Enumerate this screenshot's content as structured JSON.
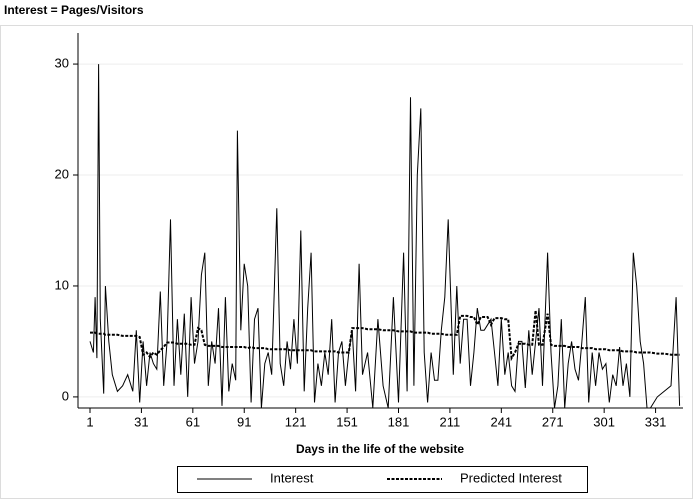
{
  "chart_data": {
    "type": "line",
    "title": "Interest = Pages/Visitors",
    "x_label": "Days in the life of the website",
    "xlim": [
      -6,
      347
    ],
    "ylim": [
      -1,
      32.8
    ],
    "xticks": [
      1,
      31,
      61,
      91,
      121,
      151,
      181,
      211,
      241,
      271,
      301,
      331
    ],
    "yticks": [
      0,
      10,
      20,
      30
    ],
    "grid": true,
    "legend": "bottom",
    "x": [
      1,
      3,
      4,
      5,
      6,
      7,
      9,
      10,
      12,
      14,
      17,
      20,
      23,
      26,
      28,
      30,
      32,
      34,
      36,
      38,
      40,
      42,
      44,
      46,
      48,
      50,
      52,
      54,
      56,
      58,
      60,
      62,
      64,
      66,
      68,
      70,
      72,
      74,
      76,
      78,
      80,
      82,
      84,
      86,
      87,
      89,
      91,
      93,
      95,
      97,
      99,
      101,
      103,
      105,
      107,
      110,
      112,
      114,
      116,
      118,
      120,
      122,
      124,
      126,
      128,
      130,
      132,
      134,
      136,
      138,
      140,
      142,
      144,
      146,
      148,
      150,
      152,
      154,
      156,
      158,
      160,
      163,
      166,
      169,
      172,
      175,
      178,
      181,
      184,
      186,
      188,
      190,
      192,
      194,
      196,
      198,
      200,
      202,
      204,
      206,
      208,
      210,
      213,
      215,
      217,
      219,
      221,
      223,
      225,
      227,
      229,
      231,
      233,
      235,
      237,
      239,
      241,
      243,
      245,
      247,
      249,
      251,
      253,
      255,
      257,
      259,
      261,
      263,
      265,
      268,
      270,
      272,
      274,
      276,
      278,
      280,
      282,
      284,
      286,
      288,
      290,
      292,
      294,
      296,
      298,
      300,
      302,
      304,
      306,
      308,
      310,
      312,
      314,
      316,
      318,
      320,
      322,
      324,
      326,
      328,
      332,
      336,
      340,
      343,
      345
    ],
    "series": [
      {
        "name": "Interest",
        "color": "#000000",
        "style": "solid",
        "values": [
          5,
          4,
          9,
          3.5,
          30,
          7,
          0.3,
          10,
          5,
          2,
          0.5,
          1,
          2,
          0.5,
          6,
          -0.5,
          5,
          1,
          4,
          3,
          2.5,
          9.5,
          1,
          5,
          16,
          1,
          7,
          2,
          7.5,
          0,
          9,
          3,
          5,
          11,
          13,
          1,
          5,
          3,
          8,
          -0.8,
          9,
          0.5,
          3,
          1.5,
          24,
          6,
          12,
          10,
          -0.5,
          7,
          8,
          -1,
          3,
          4,
          2,
          17,
          3,
          1,
          5,
          2.5,
          7,
          3,
          15,
          0.5,
          8,
          13,
          -0.5,
          3,
          1,
          4,
          2,
          7,
          -0.5,
          4,
          5,
          1,
          4,
          6,
          0.5,
          12,
          2,
          4,
          -1,
          7,
          1,
          -1,
          9,
          -0.5,
          13,
          0.5,
          27,
          1,
          20,
          26,
          4,
          -0.5,
          4,
          1.5,
          1.5,
          6,
          9,
          16,
          2,
          10,
          3,
          7,
          7,
          1,
          4,
          8,
          6,
          6,
          6.5,
          7,
          4,
          1,
          7,
          2,
          4,
          1,
          0.5,
          5,
          5,
          0.8,
          6,
          2,
          5,
          8,
          1,
          13,
          4,
          -1,
          1,
          7,
          -1,
          3,
          5,
          2.5,
          1.5,
          5,
          9,
          -0.5,
          4,
          1,
          4,
          2.5,
          3,
          -0.5,
          2,
          1,
          4.5,
          1,
          3,
          0,
          13,
          10,
          5,
          3,
          -1,
          -1,
          0,
          0.5,
          1,
          9,
          -0.8
        ]
      },
      {
        "name": "Predicted Interest",
        "color": "#000000",
        "style": "dashed",
        "values": [
          5.8,
          5.8,
          5.8,
          5.7,
          5.7,
          5.7,
          5.7,
          5.6,
          5.6,
          5.6,
          5.6,
          5.5,
          5.5,
          5.5,
          5.5,
          5.4,
          3.8,
          4.0,
          3.6,
          4.0,
          3.8,
          4.2,
          4.5,
          4.9,
          4.9,
          4.9,
          4.8,
          4.8,
          4.8,
          4.8,
          4.7,
          4.7,
          6.2,
          6.0,
          4.7,
          4.6,
          4.6,
          4.6,
          4.6,
          4.5,
          4.5,
          4.5,
          4.5,
          4.5,
          4.5,
          4.5,
          4.5,
          4.4,
          4.5,
          4.4,
          4.4,
          4.4,
          4.4,
          4.3,
          4.3,
          4.3,
          4.3,
          4.3,
          4.3,
          4.2,
          4.2,
          4.2,
          4.2,
          4.2,
          4.2,
          4.2,
          4.1,
          4.1,
          4.1,
          4.1,
          4.1,
          4.1,
          4.1,
          4.0,
          4.0,
          4.0,
          4.0,
          6.2,
          6.2,
          6.2,
          6.2,
          6.1,
          6.1,
          6.1,
          6.0,
          6.0,
          6.0,
          5.9,
          5.9,
          5.9,
          5.9,
          5.8,
          5.8,
          5.8,
          5.8,
          5.8,
          5.7,
          5.7,
          5.7,
          5.7,
          5.6,
          5.6,
          5.6,
          5.6,
          7.3,
          7.3,
          7.3,
          7.2,
          7.2,
          6.5,
          7.2,
          7.2,
          7.2,
          6.5,
          7.1,
          7.1,
          7.1,
          7.0,
          7.0,
          3.5,
          4.0,
          4.8,
          4.8,
          4.8,
          4.7,
          4.7,
          7.8,
          4.7,
          4.7,
          7.5,
          4.7,
          4.6,
          4.6,
          4.6,
          4.6,
          4.5,
          4.5,
          4.5,
          4.5,
          4.4,
          4.4,
          4.4,
          4.4,
          4.3,
          4.3,
          4.3,
          4.3,
          4.2,
          4.2,
          4.2,
          4.2,
          4.1,
          4.1,
          4.1,
          4.1,
          4.0,
          4.0,
          4.0,
          4.0,
          4.0,
          3.9,
          3.9,
          3.8,
          3.8,
          3.8
        ]
      }
    ]
  }
}
